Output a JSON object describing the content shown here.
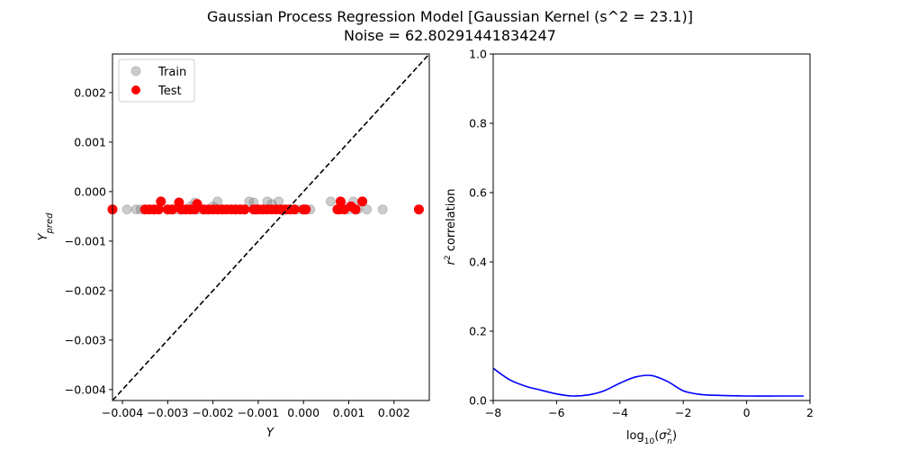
{
  "figure": {
    "title_line1": "Gaussian Process Regression Model [Gaussian Kernel (s^2 = 23.1)]",
    "title_line2": "Noise = 62.80291441834247"
  },
  "chart_data": [
    {
      "type": "scatter",
      "xlabel": "Y",
      "ylabel": "Y_pred",
      "xlim": [
        -0.00422,
        0.00278
      ],
      "ylim": [
        -0.00422,
        0.00278
      ],
      "xticks": [
        -0.004,
        -0.003,
        -0.002,
        -0.001,
        0.0,
        0.001,
        0.002
      ],
      "xtick_labels": [
        "−0.004",
        "−0.003",
        "−0.002",
        "−0.001",
        "0.000",
        "0.001",
        "0.002"
      ],
      "yticks": [
        -0.004,
        -0.003,
        -0.002,
        -0.001,
        0.0,
        0.001,
        0.002
      ],
      "ytick_labels": [
        "−0.004",
        "−0.003",
        "−0.002",
        "−0.001",
        "0.000",
        "0.001",
        "0.002"
      ],
      "legend_position": "top-left",
      "reference_line": "y = x (dashed)",
      "series": [
        {
          "name": "Train",
          "color": "#808080",
          "opacity": 0.4,
          "points": [
            [
              -0.0039,
              -0.00036
            ],
            [
              -0.0037,
              -0.00036
            ],
            [
              -0.0036,
              -0.00036
            ],
            [
              -0.0035,
              -0.00036
            ],
            [
              -0.0033,
              -0.00036
            ],
            [
              -0.0032,
              -0.00036
            ],
            [
              -0.003,
              -0.00036
            ],
            [
              -0.0029,
              -0.00036
            ],
            [
              -0.0028,
              -0.00036
            ],
            [
              -0.0027,
              -0.00036
            ],
            [
              -0.0025,
              -0.0003
            ],
            [
              -0.0024,
              -0.00022
            ],
            [
              -0.0023,
              -0.00036
            ],
            [
              -0.0022,
              -0.00036
            ],
            [
              -0.0021,
              -0.00036
            ],
            [
              -0.002,
              -0.0003
            ],
            [
              -0.0019,
              -0.0002
            ],
            [
              -0.0018,
              -0.00036
            ],
            [
              -0.0017,
              -0.00036
            ],
            [
              -0.0016,
              -0.00036
            ],
            [
              -0.0015,
              -0.00036
            ],
            [
              -0.0013,
              -0.00036
            ],
            [
              -0.0012,
              -0.0002
            ],
            [
              -0.0011,
              -0.00022
            ],
            [
              -0.001,
              -0.00036
            ],
            [
              -0.0009,
              -0.00036
            ],
            [
              -0.0008,
              -0.0002
            ],
            [
              -0.0007,
              -0.00025
            ],
            [
              -0.00055,
              -0.0002
            ],
            [
              -0.0005,
              -0.00036
            ],
            [
              -0.0004,
              -0.00036
            ],
            [
              -0.0003,
              -0.00036
            ],
            [
              -0.0002,
              -0.00036
            ],
            [
              -0.0001,
              -0.00036
            ],
            [
              5e-05,
              -0.00036
            ],
            [
              0.00015,
              -0.00036
            ],
            [
              0.0006,
              -0.0002
            ],
            [
              0.0009,
              -0.0003
            ],
            [
              0.001,
              -0.00036
            ],
            [
              0.0011,
              -0.0002
            ],
            [
              0.0012,
              -0.00036
            ],
            [
              0.0014,
              -0.00036
            ],
            [
              0.00175,
              -0.00036
            ]
          ]
        },
        {
          "name": "Test",
          "color": "#ff0000",
          "opacity": 1,
          "points": [
            [
              -0.00422,
              -0.00036
            ],
            [
              -0.0035,
              -0.00036
            ],
            [
              -0.0034,
              -0.00036
            ],
            [
              -0.0033,
              -0.00036
            ],
            [
              -0.0032,
              -0.00036
            ],
            [
              -0.00315,
              -0.0002
            ],
            [
              -0.003,
              -0.00036
            ],
            [
              -0.0029,
              -0.00036
            ],
            [
              -0.00275,
              -0.00022
            ],
            [
              -0.0027,
              -0.00036
            ],
            [
              -0.0026,
              -0.00036
            ],
            [
              -0.0025,
              -0.00036
            ],
            [
              -0.0024,
              -0.00036
            ],
            [
              -0.00235,
              -0.00025
            ],
            [
              -0.0022,
              -0.00036
            ],
            [
              -0.0021,
              -0.00036
            ],
            [
              -0.002,
              -0.00036
            ],
            [
              -0.0019,
              -0.00036
            ],
            [
              -0.0018,
              -0.00036
            ],
            [
              -0.0017,
              -0.00036
            ],
            [
              -0.0016,
              -0.00036
            ],
            [
              -0.0015,
              -0.00036
            ],
            [
              -0.0014,
              -0.00036
            ],
            [
              -0.0013,
              -0.00036
            ],
            [
              -0.0011,
              -0.00036
            ],
            [
              -0.00105,
              -0.00036
            ],
            [
              -0.001,
              -0.00036
            ],
            [
              -0.0009,
              -0.00036
            ],
            [
              -0.0008,
              -0.00036
            ],
            [
              -0.0007,
              -0.00036
            ],
            [
              -0.0006,
              -0.00036
            ],
            [
              -0.0005,
              -0.00036
            ],
            [
              -0.0004,
              -0.00036
            ],
            [
              -0.0003,
              -0.00036
            ],
            [
              -0.0002,
              -0.00036
            ],
            [
              0.0,
              -0.00036
            ],
            [
              5e-05,
              -0.00036
            ],
            [
              0.00075,
              -0.00036
            ],
            [
              0.0008,
              -0.00036
            ],
            [
              0.00082,
              -0.0002
            ],
            [
              0.0009,
              -0.00036
            ],
            [
              0.00105,
              -0.0003
            ],
            [
              0.00115,
              -0.00036
            ],
            [
              0.0013,
              -0.0002
            ],
            [
              0.00255,
              -0.00036
            ]
          ]
        }
      ]
    },
    {
      "type": "line",
      "xlabel": "log10(σn²)",
      "ylabel": "r² correlation",
      "xlim": [
        -8,
        2
      ],
      "ylim": [
        0,
        1
      ],
      "xticks": [
        -8,
        -6,
        -4,
        -2,
        0,
        2
      ],
      "xtick_labels": [
        "−8",
        "−6",
        "−4",
        "−2",
        "0",
        "2"
      ],
      "yticks": [
        0,
        0.2,
        0.4,
        0.6,
        0.8,
        1.0
      ],
      "ytick_labels": [
        "0.0",
        "0.2",
        "0.4",
        "0.6",
        "0.8",
        "1.0"
      ],
      "series": [
        {
          "color": "#0000ff",
          "x": [
            -8,
            -7.5,
            -7,
            -6.5,
            -6,
            -5.5,
            -5,
            -4.5,
            -4,
            -3.5,
            -3,
            -2.5,
            -2,
            -1.5,
            -1,
            0,
            1,
            1.8
          ],
          "y": [
            0.093,
            0.061,
            0.042,
            0.03,
            0.019,
            0.013,
            0.016,
            0.028,
            0.05,
            0.068,
            0.072,
            0.055,
            0.028,
            0.018,
            0.015,
            0.013,
            0.013,
            0.013
          ]
        }
      ]
    }
  ]
}
